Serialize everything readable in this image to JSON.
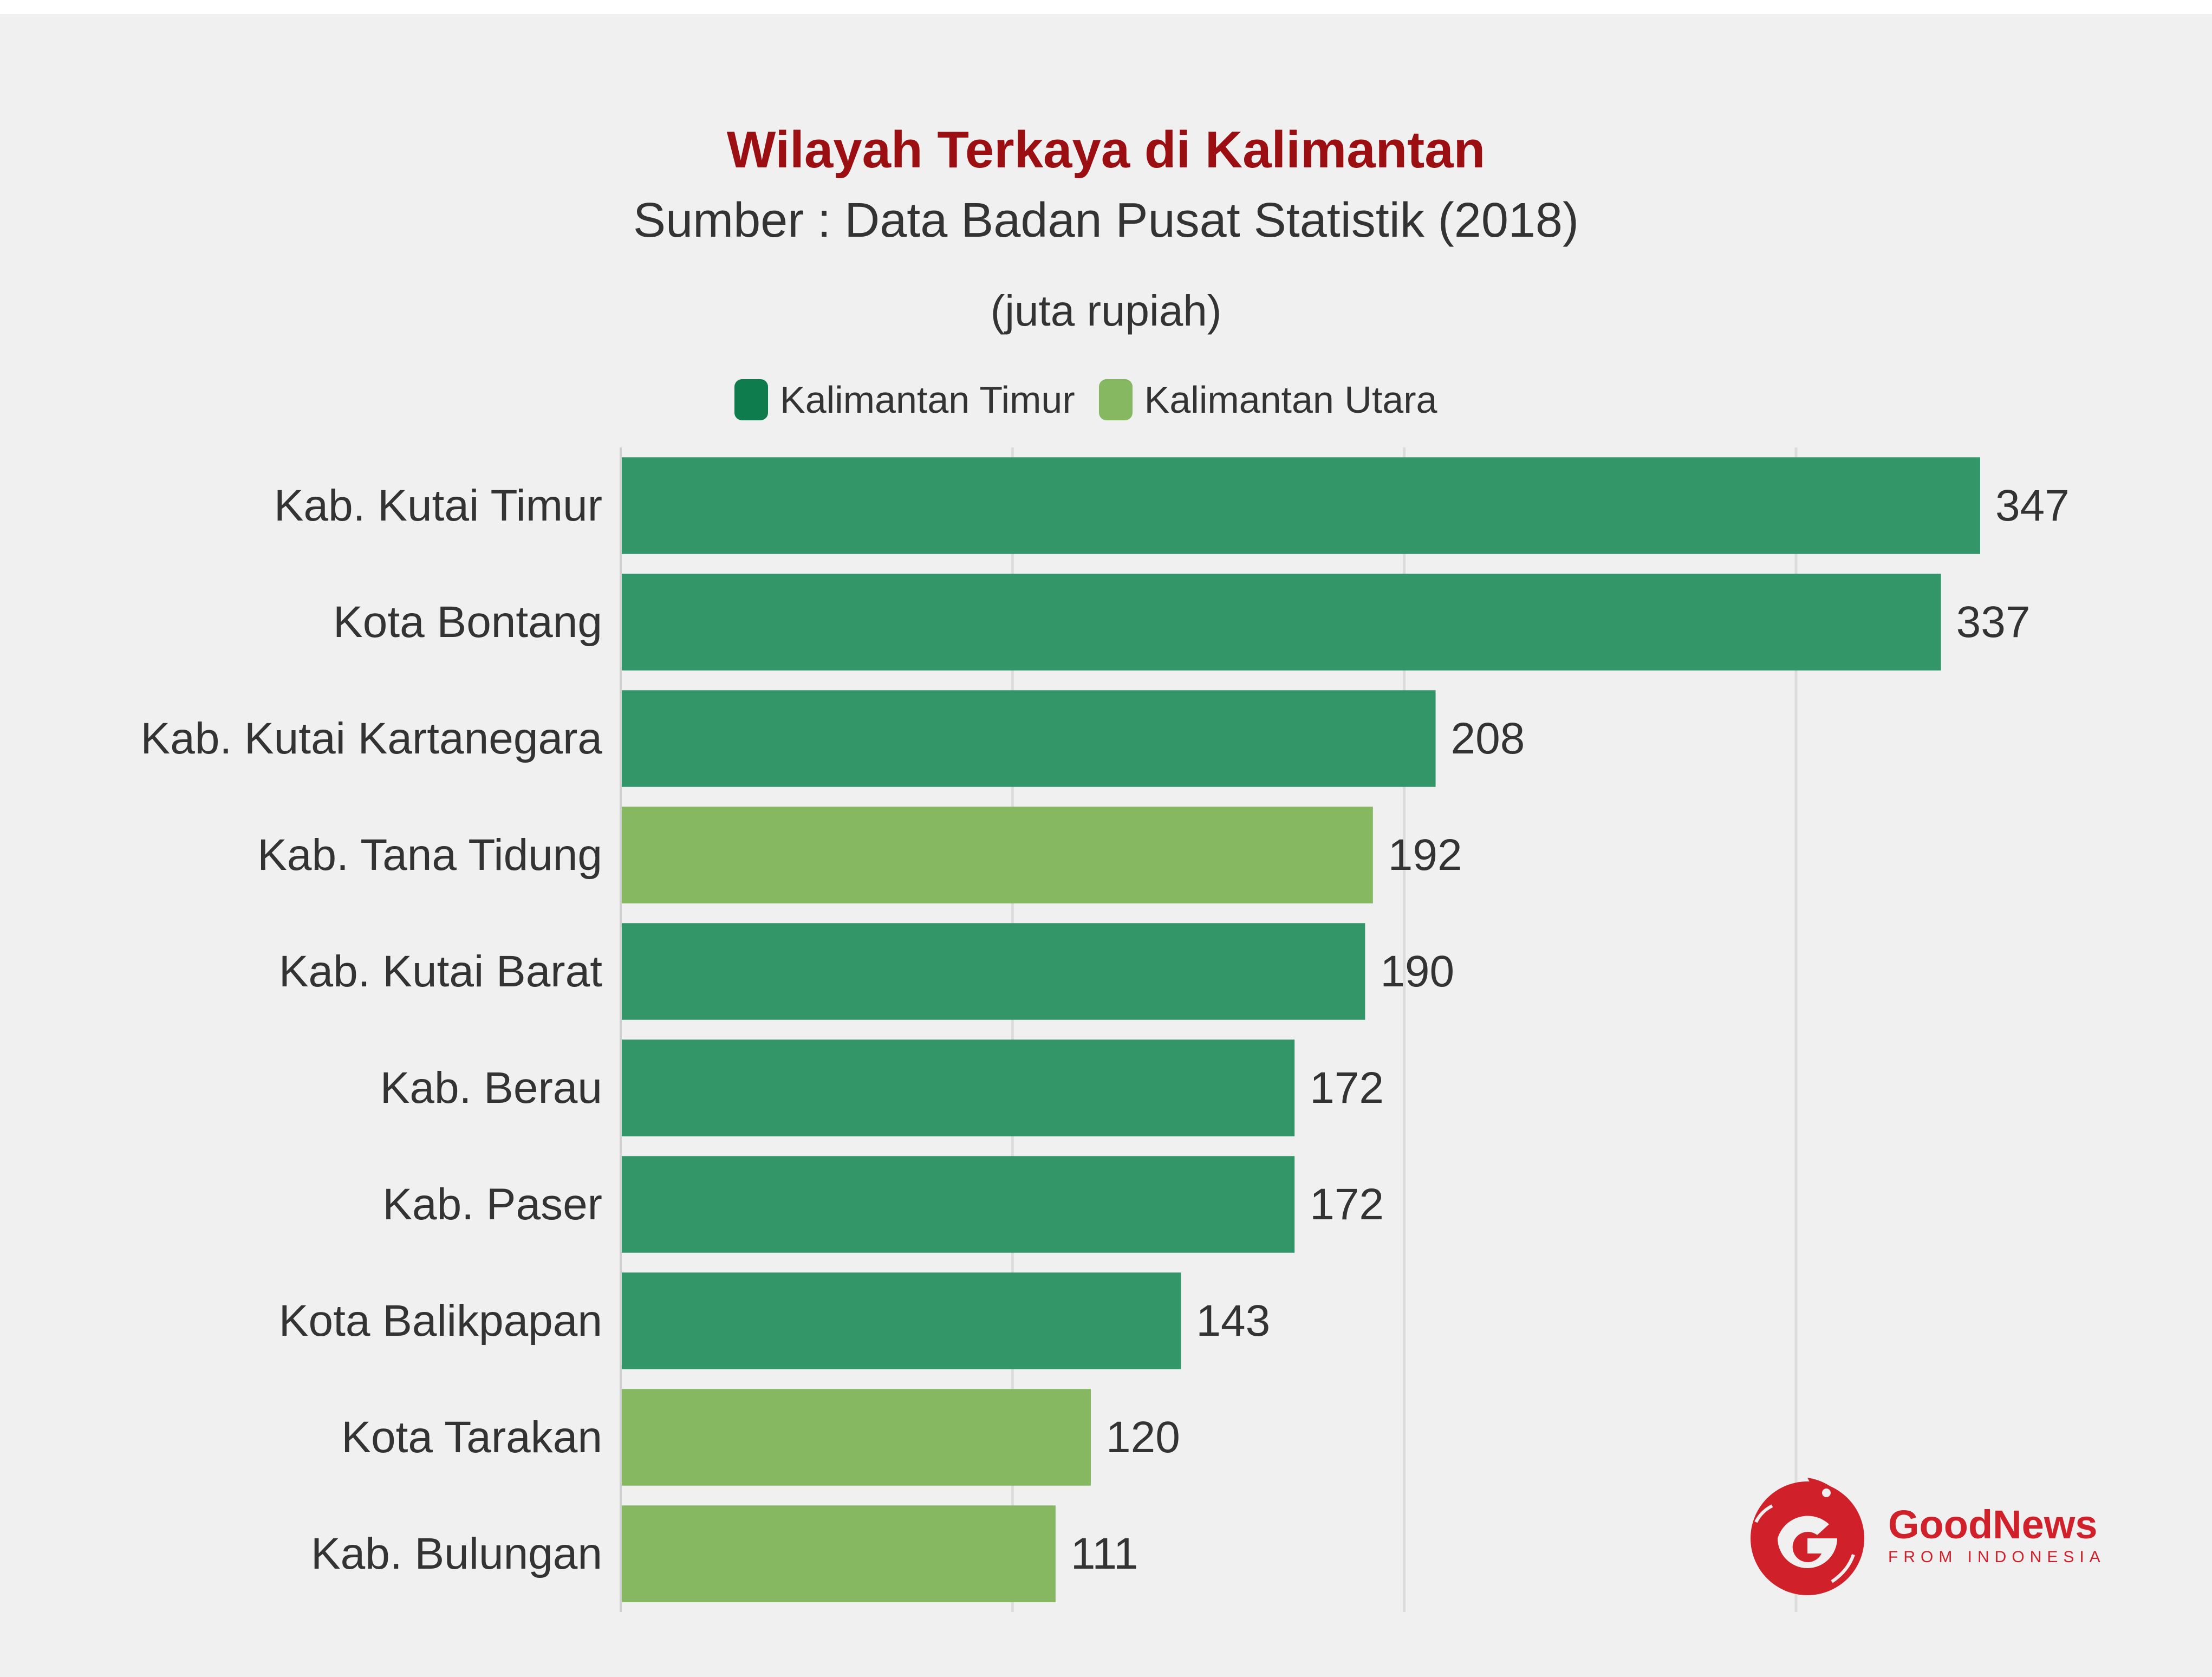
{
  "chart_data": {
    "type": "bar",
    "orientation": "horizontal",
    "title": "Wilayah Terkaya di Kalimantan",
    "subtitle": "Sumber : Data Badan Pusat Statistik (2018)",
    "unit_label": "(juta rupiah)",
    "legend": [
      {
        "name": "Kalimantan Timur",
        "color": "#329668"
      },
      {
        "name": "Kalimantan Utara",
        "color": "#86b861"
      }
    ],
    "legend_position": "top-center",
    "categories": [
      "Kab. Kutai Timur",
      "Kota Bontang",
      "Kab. Kutai Kartanegara",
      "Kab. Tana Tidung",
      "Kab. Kutai Barat",
      "Kab. Berau",
      "Kab. Paser",
      "Kota Balikpapan",
      "Kota Tarakan",
      "Kab. Bulungan"
    ],
    "values": [
      347,
      337,
      208,
      192,
      190,
      172,
      172,
      143,
      120,
      111
    ],
    "labels": [
      "347",
      "337",
      "208",
      "192",
      "190",
      "172",
      "172",
      "143",
      "120",
      "111"
    ],
    "groups": [
      "Kalimantan Timur",
      "Kalimantan Timur",
      "Kalimantan Timur",
      "Kalimantan Utara",
      "Kalimantan Timur",
      "Kalimantan Timur",
      "Kalimantan Timur",
      "Kalimantan Timur",
      "Kalimantan Utara",
      "Kalimantan Utara"
    ],
    "xlim": [
      0,
      360
    ],
    "gridlines_x": [
      0,
      100,
      200,
      300
    ],
    "grid": true
  },
  "logo": {
    "name": "GoodNews",
    "tagline": "FROM INDONESIA",
    "color": "#d0202a"
  }
}
